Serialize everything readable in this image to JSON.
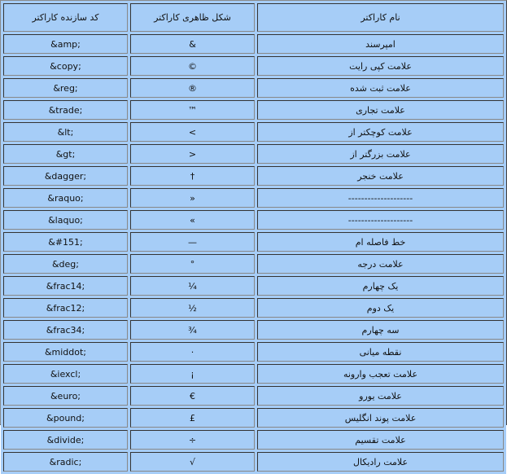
{
  "header": {
    "code": "کد سازنده کاراکتر",
    "glyph": "شکل ظاهری کاراکتر",
    "name": "نام کاراکتر"
  },
  "rows": [
    {
      "code": "&amp;",
      "glyph": "&",
      "name": "امپرسند"
    },
    {
      "code": "&copy;",
      "glyph": "©",
      "name": "علامت کپی رایت"
    },
    {
      "code": "&reg;",
      "glyph": "®",
      "name": "علامت ثبت شده"
    },
    {
      "code": "&trade;",
      "glyph": "™",
      "name": "علامت تجاری"
    },
    {
      "code": "&lt;",
      "glyph": "<",
      "name": "علامت کوچکتر از"
    },
    {
      "code": "&gt;",
      "glyph": ">",
      "name": "علامت بزرگتر از"
    },
    {
      "code": "&dagger;",
      "glyph": "†",
      "name": "علامت خنجر"
    },
    {
      "code": "&raquo;",
      "glyph": "»",
      "name": "--------------------"
    },
    {
      "code": "&laquo;",
      "glyph": "«",
      "name": "--------------------"
    },
    {
      "code": "&#151;",
      "glyph": "—",
      "name": "خط فاصله ام"
    },
    {
      "code": "&deg;",
      "glyph": "°",
      "name": "علامت درجه"
    },
    {
      "code": "&frac14;",
      "glyph": "¼",
      "name": "یک چهارم"
    },
    {
      "code": "&frac12;",
      "glyph": "½",
      "name": "یک دوم"
    },
    {
      "code": "&frac34;",
      "glyph": "¾",
      "name": "سه چهارم"
    },
    {
      "code": "&middot;",
      "glyph": "·",
      "name": "نقطه میانی"
    },
    {
      "code": "&iexcl;",
      "glyph": "¡",
      "name": "علامت تعجب وارونه"
    },
    {
      "code": "&euro;",
      "glyph": "€",
      "name": "علامت یورو"
    },
    {
      "code": "&pound;",
      "glyph": "£",
      "name": "علامت پوند انگلیس"
    },
    {
      "code": "&divide;",
      "glyph": "÷",
      "name": "علامت تقسیم"
    },
    {
      "code": "&radic;",
      "glyph": "√",
      "name": "علامت رادیکال"
    }
  ],
  "colors": {
    "background": "#a6cdf7"
  }
}
